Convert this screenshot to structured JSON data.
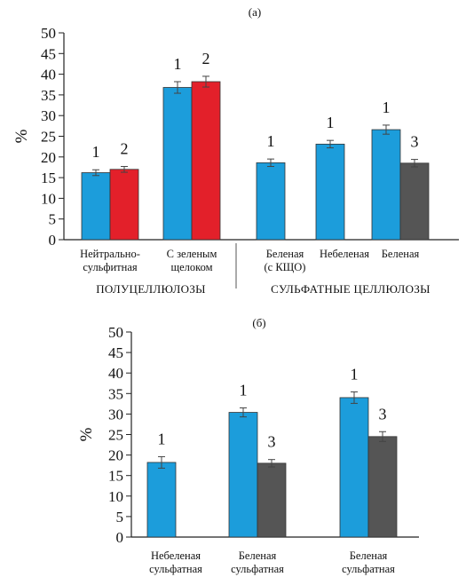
{
  "chart_data": [
    {
      "type": "bar",
      "panel_label": "(а)",
      "ylabel": "%",
      "ylim": [
        0,
        50
      ],
      "yticks": [
        "0",
        "5",
        "10",
        "15",
        "20",
        "25",
        "30",
        "35",
        "40",
        "45",
        "50"
      ],
      "series_colors": {
        "1": "#1c9ddb",
        "2": "#e3202a",
        "3": "#555555"
      },
      "groups": [
        {
          "category": [
            "Нейтрально-",
            "сульфитная"
          ],
          "bars": [
            {
              "series": "1",
              "label": "1",
              "value": 16.2,
              "error": 0.7
            },
            {
              "series": "2",
              "label": "2",
              "value": 17.0,
              "error": 0.7
            }
          ]
        },
        {
          "category": [
            "С зеленым",
            "щелоком"
          ],
          "bars": [
            {
              "series": "1",
              "label": "1",
              "value": 36.8,
              "error": 1.4
            },
            {
              "series": "2",
              "label": "2",
              "value": 38.2,
              "error": 1.3
            }
          ]
        },
        {
          "category": [
            "Беленая",
            "(с КЩО)"
          ],
          "bars": [
            {
              "series": "1",
              "label": "1",
              "value": 18.6,
              "error": 0.9
            }
          ]
        },
        {
          "category": [
            "Небеленая"
          ],
          "bars": [
            {
              "series": "1",
              "label": "1",
              "value": 23.1,
              "error": 0.9
            }
          ]
        },
        {
          "category": [
            "Беленая"
          ],
          "bars": [
            {
              "series": "1",
              "label": "1",
              "value": 26.6,
              "error": 1.1
            },
            {
              "series": "3",
              "label": "3",
              "value": 18.5,
              "error": 0.9
            }
          ]
        }
      ],
      "group_labels": [
        "ПОЛУЦЕЛЛЮЛОЗЫ",
        "СУЛЬФАТНЫЕ ЦЕЛЛЮЛОЗЫ"
      ]
    },
    {
      "type": "bar",
      "panel_label": "(б)",
      "ylabel": "%",
      "ylim": [
        0,
        50
      ],
      "yticks": [
        "0",
        "5",
        "10",
        "15",
        "20",
        "25",
        "30",
        "35",
        "40",
        "45",
        "50"
      ],
      "series_colors": {
        "1": "#1c9ddb",
        "3": "#555555"
      },
      "groups": [
        {
          "category": [
            "Небеленая",
            "сульфатная"
          ],
          "bars": [
            {
              "series": "1",
              "label": "1",
              "value": 18.2,
              "error": 1.4
            }
          ]
        },
        {
          "category": [
            "Беленая",
            "сульфатная"
          ],
          "bars": [
            {
              "series": "1",
              "label": "1",
              "value": 30.4,
              "error": 1.1
            },
            {
              "series": "3",
              "label": "3",
              "value": 18.0,
              "error": 0.9
            }
          ]
        },
        {
          "category": [
            "Беленая",
            "сульфатная"
          ],
          "bars": [
            {
              "series": "1",
              "label": "1",
              "value": 34.0,
              "error": 1.4
            },
            {
              "series": "3",
              "label": "3",
              "value": 24.5,
              "error": 1.2
            }
          ]
        }
      ]
    }
  ]
}
